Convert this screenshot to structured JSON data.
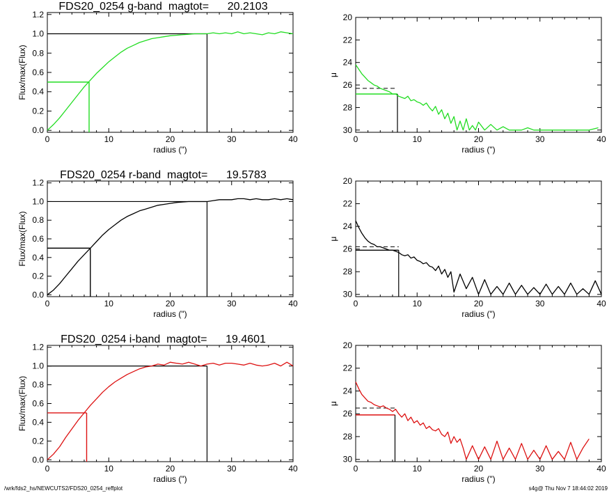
{
  "footer": {
    "left": "/wrk/fds2_hs/NEWCUTS2/FDS20_0254_reffplot",
    "right": "s4g@  Thu Nov  7 18:44:02 2019"
  },
  "chart_data": [
    {
      "type": "line",
      "panel": "growth",
      "band": "g",
      "title": "FDS20_0254 g-band  magtot=      20.2103",
      "xlabel": "radius (\")",
      "ylabel": "Flux/max(Flux)",
      "xlim": [
        0,
        40
      ],
      "ylim": [
        -0.02,
        1.22
      ],
      "xticks": [
        0,
        10,
        20,
        30,
        40
      ],
      "yticks": [
        0.0,
        0.2,
        0.4,
        0.6,
        0.8,
        1.0,
        1.2
      ],
      "ytick_labels": [
        "0.0",
        "0.2",
        "0.4",
        "0.6",
        "0.8",
        "1.0",
        "1.2"
      ],
      "color": "#22dd22",
      "x": [
        0,
        1,
        2,
        3,
        4,
        5,
        6,
        7,
        8,
        9,
        10,
        11,
        12,
        13,
        14,
        15,
        16,
        17,
        18,
        19,
        20,
        21,
        22,
        23,
        24,
        25,
        26,
        27,
        28,
        29,
        30,
        31,
        32,
        33,
        34,
        35,
        36,
        37,
        38,
        39,
        40
      ],
      "y": [
        0.0,
        0.06,
        0.13,
        0.21,
        0.29,
        0.37,
        0.45,
        0.52,
        0.59,
        0.65,
        0.71,
        0.76,
        0.81,
        0.85,
        0.88,
        0.91,
        0.93,
        0.95,
        0.96,
        0.97,
        0.98,
        0.985,
        0.99,
        0.995,
        1.0,
        1.0,
        1.0,
        1.01,
        1.0,
        1.01,
        1.0,
        1.02,
        1.0,
        1.01,
        1.0,
        0.99,
        1.01,
        1.0,
        1.02,
        1.01,
        1.0
      ],
      "half_light": {
        "r": 6.8,
        "level": 0.5,
        "color": "#22dd22"
      },
      "total": {
        "r": 26,
        "level": 1.0,
        "color": "#000000"
      }
    },
    {
      "type": "line",
      "panel": "surface-brightness",
      "band": "g",
      "ylabel": "μ",
      "xlabel": "radius (\")",
      "xlim": [
        0,
        40
      ],
      "ylim": [
        30.2,
        20
      ],
      "xticks": [
        0,
        10,
        20,
        30,
        40
      ],
      "yticks": [
        20,
        22,
        24,
        26,
        28,
        30
      ],
      "color": "#22dd22",
      "x": [
        0,
        0.5,
        1,
        1.5,
        2,
        2.5,
        3,
        3.5,
        4,
        4.5,
        5,
        5.5,
        6,
        6.5,
        7,
        7.5,
        8,
        8.5,
        9,
        9.5,
        10,
        10.5,
        11,
        11.5,
        12,
        12.5,
        13,
        13.5,
        14,
        14.5,
        15,
        15.5,
        16,
        16.5,
        17,
        17.5,
        18,
        18.5,
        19,
        19.5,
        20,
        21,
        22,
        23,
        24,
        25,
        26,
        27,
        28,
        29,
        30,
        32,
        34,
        36,
        38,
        39.5
      ],
      "y": [
        24.2,
        24.6,
        25.0,
        25.3,
        25.6,
        25.8,
        26.0,
        26.1,
        26.3,
        26.4,
        26.5,
        26.6,
        26.8,
        26.8,
        27.0,
        27.1,
        27.2,
        27.0,
        27.4,
        27.3,
        27.5,
        27.6,
        27.8,
        27.6,
        28.0,
        28.3,
        27.9,
        28.6,
        28.2,
        29.0,
        28.5,
        29.4,
        28.8,
        30.0,
        29.2,
        30.0,
        29.0,
        30.0,
        29.6,
        30.0,
        29.3,
        30.0,
        29.5,
        30.0,
        29.7,
        30.0,
        30.0,
        30.0,
        29.8,
        30.0,
        30.0,
        30.0,
        30.0,
        30.0,
        30.0,
        29.8
      ],
      "mu_e": {
        "r": 6.8,
        "value": 26.8,
        "color": "#22dd22"
      },
      "mu_e_mean": {
        "r": 6.8,
        "value": 26.3
      }
    },
    {
      "type": "line",
      "panel": "growth",
      "band": "r",
      "title": "FDS20_0254 r-band  magtot=      19.5783",
      "xlabel": "radius (\")",
      "ylabel": "Flux/max(Flux)",
      "xlim": [
        0,
        40
      ],
      "ylim": [
        -0.02,
        1.22
      ],
      "xticks": [
        0,
        10,
        20,
        30,
        40
      ],
      "yticks": [
        0.0,
        0.2,
        0.4,
        0.6,
        0.8,
        1.0,
        1.2
      ],
      "ytick_labels": [
        "0.0",
        "0.2",
        "0.4",
        "0.6",
        "0.8",
        "1.0",
        "1.2"
      ],
      "color": "#000000",
      "x": [
        0,
        1,
        2,
        3,
        4,
        5,
        6,
        7,
        8,
        9,
        10,
        11,
        12,
        13,
        14,
        15,
        16,
        17,
        18,
        19,
        20,
        21,
        22,
        23,
        24,
        25,
        26,
        27,
        28,
        29,
        30,
        31,
        32,
        33,
        34,
        35,
        36,
        37,
        38,
        39,
        40
      ],
      "y": [
        0.0,
        0.05,
        0.12,
        0.2,
        0.28,
        0.36,
        0.43,
        0.5,
        0.57,
        0.64,
        0.7,
        0.75,
        0.8,
        0.84,
        0.87,
        0.9,
        0.92,
        0.94,
        0.96,
        0.97,
        0.98,
        0.99,
        0.995,
        1.0,
        1.0,
        1.0,
        1.0,
        1.01,
        1.02,
        1.02,
        1.02,
        1.03,
        1.03,
        1.02,
        1.03,
        1.02,
        1.02,
        1.03,
        1.02,
        1.03,
        1.02
      ],
      "half_light": {
        "r": 7.0,
        "level": 0.5,
        "color": "#000000"
      },
      "total": {
        "r": 26,
        "level": 1.0,
        "color": "#000000"
      }
    },
    {
      "type": "line",
      "panel": "surface-brightness",
      "band": "r",
      "ylabel": "μ",
      "xlabel": "radius (\")",
      "xlim": [
        0,
        40
      ],
      "ylim": [
        30.2,
        20
      ],
      "xticks": [
        0,
        10,
        20,
        30,
        40
      ],
      "yticks": [
        20,
        22,
        24,
        26,
        28,
        30
      ],
      "color": "#000000",
      "x": [
        0,
        0.5,
        1,
        1.5,
        2,
        2.5,
        3,
        3.5,
        4,
        4.5,
        5,
        5.5,
        6,
        6.5,
        7,
        7.5,
        8,
        8.5,
        9,
        9.5,
        10,
        10.5,
        11,
        11.5,
        12,
        12.5,
        13,
        13.5,
        14,
        14.5,
        15,
        15.5,
        16,
        17,
        18,
        19,
        20,
        21,
        22,
        23,
        24,
        25,
        26,
        27,
        28,
        29,
        30,
        31,
        32,
        33,
        34,
        35,
        36,
        37,
        38,
        39,
        40
      ],
      "y": [
        23.5,
        24.1,
        24.6,
        25.0,
        25.3,
        25.5,
        25.6,
        25.8,
        25.8,
        25.9,
        26.0,
        26.1,
        26.1,
        26.2,
        26.3,
        26.5,
        26.6,
        26.5,
        26.8,
        26.7,
        27.0,
        27.1,
        27.3,
        27.2,
        27.5,
        27.6,
        27.9,
        27.5,
        28.2,
        27.8,
        28.5,
        28.0,
        29.8,
        28.2,
        29.5,
        28.5,
        30.0,
        28.7,
        30.0,
        29.3,
        30.0,
        29.0,
        30.0,
        29.2,
        30.0,
        29.4,
        30.0,
        29.1,
        30.0,
        29.3,
        30.0,
        29.0,
        30.0,
        29.5,
        30.0,
        28.8,
        30.0
      ],
      "mu_e": {
        "r": 7.0,
        "value": 26.1,
        "color": "#000000"
      },
      "mu_e_mean": {
        "r": 7.0,
        "value": 25.8
      }
    },
    {
      "type": "line",
      "panel": "growth",
      "band": "i",
      "title": "FDS20_0254 i-band  magtot=      19.4601",
      "xlabel": "radius (\")",
      "ylabel": "Flux/max(Flux)",
      "xlim": [
        0,
        40
      ],
      "ylim": [
        -0.02,
        1.22
      ],
      "xticks": [
        0,
        10,
        20,
        30,
        40
      ],
      "yticks": [
        0.0,
        0.2,
        0.4,
        0.6,
        0.8,
        1.0,
        1.2
      ],
      "ytick_labels": [
        "0.0",
        "0.2",
        "0.4",
        "0.6",
        "0.8",
        "1.0",
        "1.2"
      ],
      "color": "#dd1111",
      "x": [
        0,
        1,
        2,
        3,
        4,
        5,
        6,
        7,
        8,
        9,
        10,
        11,
        12,
        13,
        14,
        15,
        16,
        17,
        18,
        19,
        20,
        21,
        22,
        23,
        24,
        25,
        26,
        27,
        28,
        29,
        30,
        31,
        32,
        33,
        34,
        35,
        36,
        37,
        38,
        39,
        40
      ],
      "y": [
        0.0,
        0.06,
        0.14,
        0.24,
        0.33,
        0.42,
        0.5,
        0.58,
        0.65,
        0.72,
        0.78,
        0.83,
        0.87,
        0.91,
        0.94,
        0.97,
        0.99,
        1.0,
        1.02,
        1.01,
        1.04,
        1.03,
        1.02,
        1.04,
        1.02,
        1.0,
        1.02,
        1.03,
        1.01,
        1.03,
        1.03,
        1.02,
        1.01,
        1.03,
        1.01,
        1.0,
        1.01,
        1.03,
        1.0,
        1.04,
        1.0
      ],
      "half_light": {
        "r": 6.4,
        "level": 0.5,
        "color": "#dd1111"
      },
      "total": {
        "r": 26,
        "level": 1.0,
        "color": "#000000"
      }
    },
    {
      "type": "line",
      "panel": "surface-brightness",
      "band": "i",
      "ylabel": "μ",
      "xlabel": "radius (\")",
      "xlim": [
        0,
        40
      ],
      "ylim": [
        30.2,
        20
      ],
      "xticks": [
        0,
        10,
        20,
        30,
        40
      ],
      "yticks": [
        20,
        22,
        24,
        26,
        28,
        30
      ],
      "color": "#dd1111",
      "x": [
        0,
        0.5,
        1,
        1.5,
        2,
        2.5,
        3,
        3.5,
        4,
        4.5,
        5,
        5.5,
        6,
        6.5,
        7,
        7.5,
        8,
        8.5,
        9,
        9.5,
        10,
        10.5,
        11,
        11.5,
        12,
        12.5,
        13,
        13.5,
        14,
        14.5,
        15,
        15.5,
        16,
        16.5,
        17,
        17.5,
        18,
        19,
        20,
        21,
        22,
        23,
        24,
        25,
        26,
        27,
        28,
        29,
        30,
        31,
        32,
        33,
        34,
        35,
        36,
        37,
        38
      ],
      "y": [
        23.2,
        23.8,
        24.3,
        24.6,
        24.9,
        25.0,
        25.2,
        25.3,
        25.4,
        25.3,
        25.5,
        25.6,
        25.8,
        25.6,
        26.0,
        26.3,
        26.0,
        26.6,
        26.3,
        26.8,
        26.6,
        27.0,
        26.8,
        27.3,
        27.1,
        27.4,
        27.5,
        27.3,
        27.8,
        28.0,
        27.6,
        28.6,
        28.0,
        28.5,
        28.2,
        29.0,
        30.0,
        28.8,
        30.0,
        28.9,
        30.0,
        28.4,
        30.0,
        29.0,
        30.0,
        28.6,
        30.0,
        29.2,
        30.0,
        28.8,
        30.0,
        29.3,
        30.0,
        28.5,
        30.0,
        29.0,
        28.2
      ],
      "mu_e": {
        "r": 6.4,
        "value": 26.1,
        "color": "#dd1111"
      },
      "mu_e_mean": {
        "r": 6.4,
        "value": 25.5
      }
    }
  ]
}
